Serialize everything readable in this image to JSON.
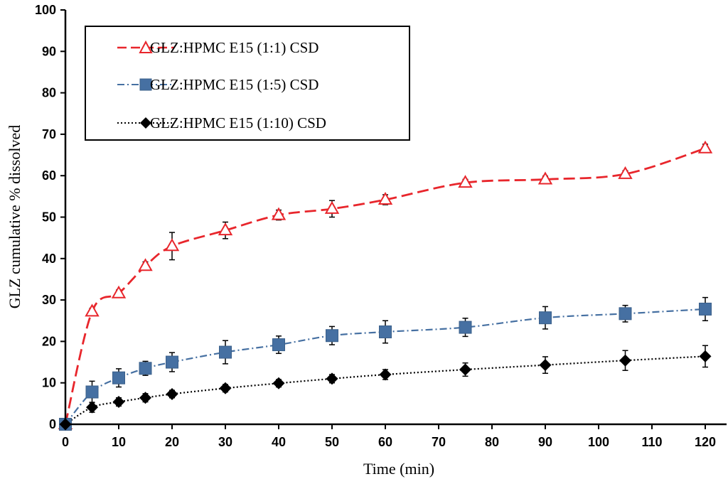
{
  "chart_data": {
    "type": "line",
    "title": "",
    "xlabel": "Time (min)",
    "ylabel": "GLZ cumulative % dissolved",
    "xlim": [
      0,
      125
    ],
    "ylim": [
      0,
      100
    ],
    "xticks": [
      0,
      10,
      20,
      30,
      40,
      50,
      60,
      70,
      80,
      90,
      100,
      110,
      120
    ],
    "yticks": [
      0,
      10,
      20,
      30,
      40,
      50,
      60,
      70,
      80,
      90,
      100
    ],
    "grid": false,
    "legend_position": "top-left",
    "x": [
      0,
      5,
      10,
      15,
      20,
      30,
      40,
      50,
      60,
      75,
      90,
      105,
      120
    ],
    "series": [
      {
        "name": "GLZ:HPMC E15 (1:1) CSD",
        "color": "#e8262c",
        "marker": "triangle-open",
        "line_style": "dashed",
        "values": [
          0,
          27.2,
          31.6,
          38.2,
          43,
          46.8,
          50.5,
          52,
          54.2,
          58.3,
          59.1,
          60.4,
          66.6
        ],
        "errors": [
          0,
          0.8,
          0.8,
          1,
          3.3,
          2,
          1.2,
          2,
          1.2,
          0.8,
          0.8,
          0.8,
          1
        ]
      },
      {
        "name": "GLZ:HPMC E15 (1:5) CSD",
        "color": "#4670a2",
        "marker": "square",
        "line_style": "dash-dot",
        "values": [
          0,
          7.8,
          11.2,
          13.5,
          15,
          17.4,
          19.2,
          21.4,
          22.3,
          23.4,
          25.7,
          26.7,
          27.8
        ],
        "errors": [
          0,
          2.6,
          2.2,
          1.7,
          2.3,
          2.8,
          2.1,
          2.2,
          2.7,
          2.2,
          2.7,
          2,
          2.8
        ]
      },
      {
        "name": "GLZ:HPMC E15 (1:10) CSD",
        "color": "#000000",
        "marker": "diamond",
        "line_style": "dotted",
        "values": [
          0,
          4.1,
          5.4,
          6.4,
          7.3,
          8.7,
          9.9,
          11,
          12,
          13.2,
          14.3,
          15.4,
          16.4
        ],
        "errors": [
          0,
          1.2,
          1,
          1,
          0.9,
          0.9,
          0.9,
          1,
          1.2,
          1.6,
          2,
          2.4,
          2.6
        ]
      }
    ]
  }
}
